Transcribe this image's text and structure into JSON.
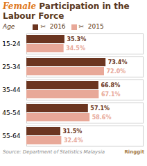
{
  "chart_data": {
    "type": "bar",
    "orientation": "horizontal",
    "title": "Female Participation in the Labour Force",
    "ylabel": "Age",
    "categories": [
      "15-24",
      "25-34",
      "35-44",
      "45-54",
      "55-64"
    ],
    "series": [
      {
        "name": "✂  2016",
        "color": "#6b3520",
        "values": [
          35.3,
          73.4,
          66.8,
          57.1,
          31.5
        ],
        "value_labels": [
          "35.3%",
          "73.4%",
          "66.8%",
          "57.1%",
          "31.5%"
        ]
      },
      {
        "name": "✂  2015",
        "color": "#e8a898",
        "values": [
          34.5,
          72.0,
          67.1,
          58.6,
          32.4
        ],
        "value_labels": [
          "34.5%",
          "72.0%",
          "67.1%",
          "58.6%",
          "32.4%"
        ]
      }
    ],
    "xlim": [
      0,
      108
    ],
    "tick_labels": "y",
    "data_labels": true,
    "legend": "top",
    "grid": false,
    "annotations": [
      "Source: Department of Statistics Malaysia",
      "Ringgit"
    ]
  }
}
